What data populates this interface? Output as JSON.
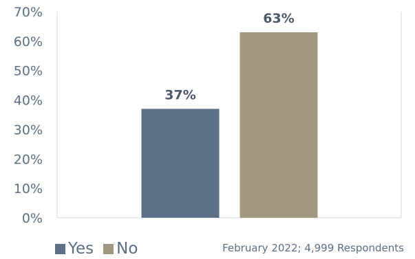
{
  "chart_data": {
    "type": "bar",
    "categories": [
      "Yes",
      "No"
    ],
    "values": [
      37,
      63
    ],
    "data_labels": [
      "37%",
      "63%"
    ],
    "colors": [
      "#5b7289",
      "#a39780"
    ],
    "ylim": [
      0,
      70
    ],
    "yticks": [
      0,
      10,
      20,
      30,
      40,
      50,
      60,
      70
    ],
    "ytick_labels": [
      "0%",
      "10%",
      "20%",
      "30%",
      "40%",
      "50%",
      "60%",
      "70%"
    ],
    "grid": false,
    "legend": {
      "placement": "bottom-left",
      "entries": [
        "Yes",
        "No"
      ]
    }
  },
  "footnote": "February 2022; 4,999 Respondents"
}
